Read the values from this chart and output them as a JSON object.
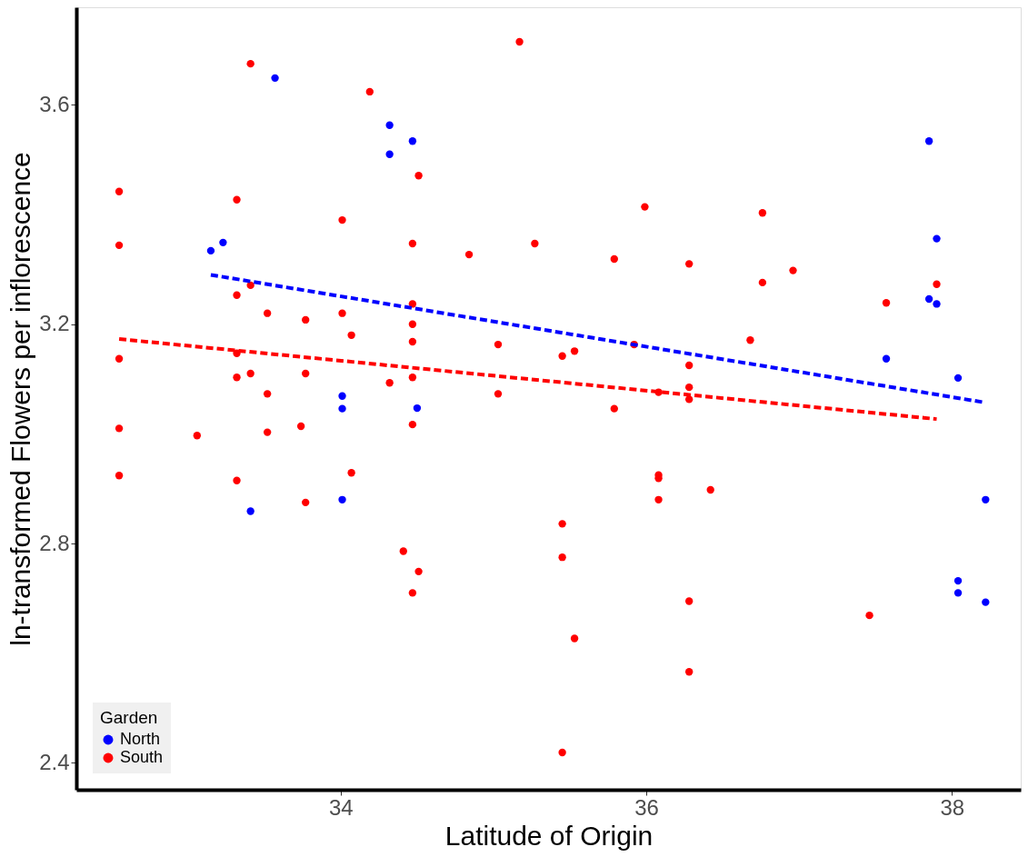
{
  "chart_data": {
    "type": "scatter",
    "xlabel": "Latitude of Origin",
    "ylabel": "ln-transformed Flowers per inflorescence",
    "legend_title": "Garden",
    "legend": "bottom left",
    "grid": false,
    "xlim": [
      32.27,
      38.45
    ],
    "ylim": [
      2.351,
      3.778
    ],
    "xticks": [
      34,
      36,
      38
    ],
    "yticks": [
      2.4,
      2.8,
      3.2,
      3.6
    ],
    "series": [
      {
        "name": "North",
        "marker": "circle",
        "color": "#0000ff",
        "x": [
          33.57,
          34.32,
          34.32,
          34.47,
          33.15,
          33.23,
          34.01,
          34.01,
          34.5,
          34.01,
          33.41,
          37.85,
          37.9,
          37.85,
          37.9,
          37.57,
          38.04,
          38.22,
          38.04,
          38.04,
          38.22
        ],
        "values": [
          3.649,
          3.563,
          3.51,
          3.534,
          3.334,
          3.349,
          3.069,
          3.046,
          3.047,
          2.88,
          2.859,
          3.534,
          3.356,
          3.246,
          3.237,
          3.137,
          3.102,
          2.88,
          2.732,
          2.71,
          2.693
        ]
      },
      {
        "name": "South",
        "marker": "circle",
        "color": "#ff0000",
        "x": [
          32.55,
          32.55,
          32.55,
          32.55,
          32.55,
          33.06,
          33.32,
          33.32,
          33.32,
          33.32,
          33.32,
          33.41,
          33.41,
          33.41,
          33.52,
          33.52,
          33.52,
          33.77,
          33.77,
          33.74,
          33.77,
          34.01,
          34.01,
          34.07,
          34.07,
          34.19,
          34.32,
          34.41,
          34.47,
          34.47,
          34.47,
          34.47,
          34.47,
          34.47,
          34.47,
          34.51,
          34.51,
          34.84,
          35.03,
          35.03,
          35.17,
          35.27,
          35.45,
          35.45,
          35.45,
          35.45,
          35.53,
          35.53,
          35.79,
          35.79,
          35.92,
          35.99,
          36.08,
          36.08,
          36.08,
          36.08,
          36.28,
          36.28,
          36.28,
          36.28,
          36.28,
          36.28,
          36.42,
          36.68,
          36.76,
          36.76,
          36.96,
          37.46,
          37.57,
          37.9
        ],
        "values": [
          3.442,
          3.344,
          3.137,
          3.01,
          2.924,
          2.997,
          3.427,
          3.253,
          3.147,
          3.103,
          2.915,
          3.675,
          3.271,
          3.11,
          3.22,
          3.073,
          3.003,
          3.208,
          3.11,
          3.014,
          2.875,
          3.39,
          3.22,
          3.18,
          2.929,
          3.624,
          3.093,
          2.786,
          3.347,
          3.237,
          3.2,
          3.168,
          3.103,
          3.017,
          2.71,
          2.749,
          3.471,
          3.327,
          3.073,
          3.163,
          3.715,
          3.347,
          3.142,
          2.836,
          2.775,
          2.419,
          3.151,
          2.627,
          3.319,
          3.046,
          3.163,
          3.414,
          3.076,
          2.925,
          2.919,
          2.88,
          3.31,
          3.125,
          3.085,
          3.063,
          2.695,
          2.566,
          2.898,
          3.171,
          3.276,
          3.403,
          3.298,
          2.669,
          3.239,
          3.273
        ]
      },
      {
        "type": "line",
        "color": "#0000ff",
        "line_style": "dashed",
        "x": [
          33.15,
          38.22
        ],
        "values": [
          3.29,
          3.057
        ]
      },
      {
        "type": "line",
        "color": "#ff0000",
        "line_style": "dashed",
        "x": [
          32.55,
          37.9
        ],
        "values": [
          3.173,
          3.027
        ]
      }
    ]
  }
}
